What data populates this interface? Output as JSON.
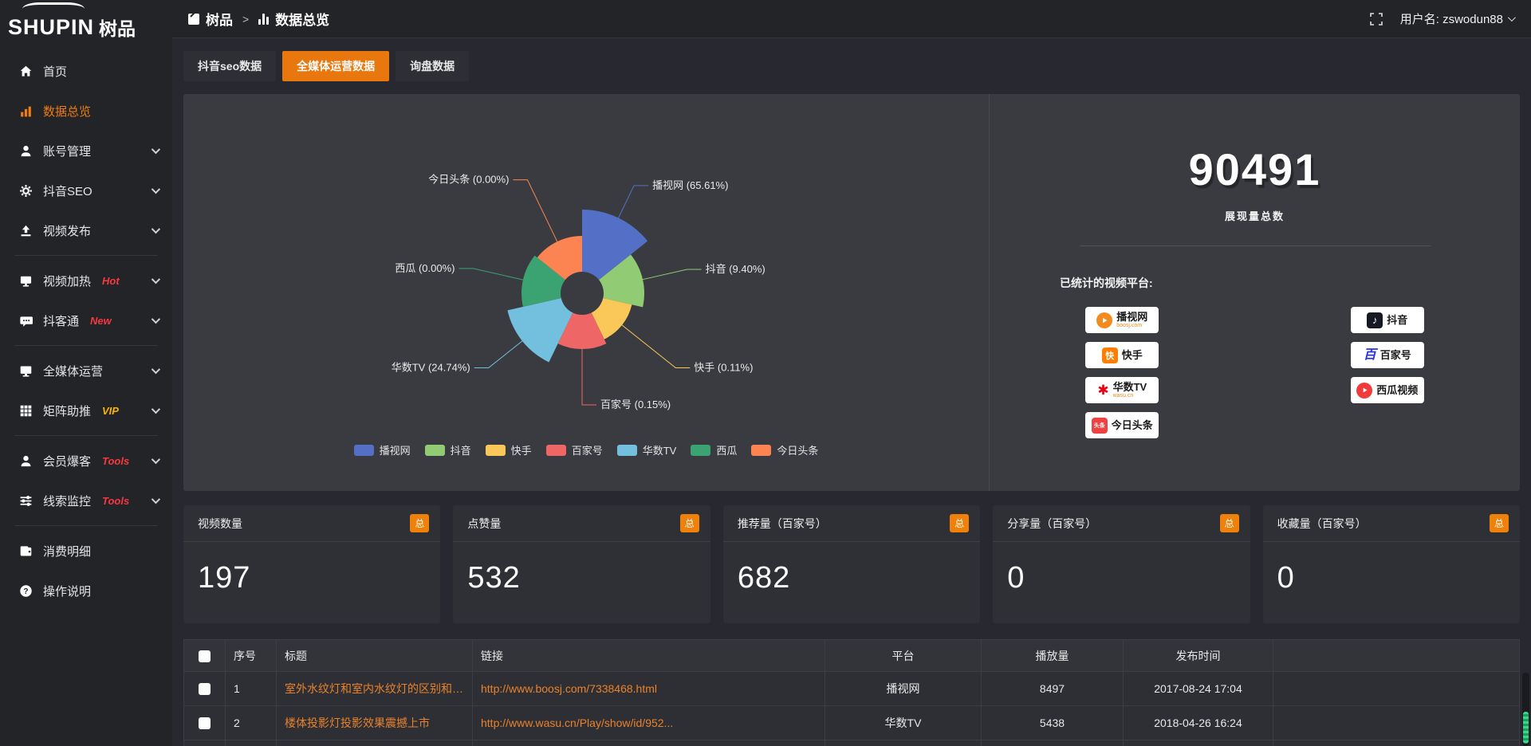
{
  "logo": {
    "main": "SHUPIN",
    "sub": "树品"
  },
  "topbar": {
    "breadcrumb": {
      "root": "树品",
      "separator": ">",
      "current": "数据总览"
    },
    "fullscreen_icon": "fullscreen-icon",
    "username": "用户名: zswodun88"
  },
  "sidebar": {
    "items": [
      {
        "label": "首页",
        "icon": "home"
      },
      {
        "label": "数据总览",
        "icon": "chart-bar",
        "active": true
      },
      {
        "label": "账号管理",
        "icon": "user",
        "chevron": true
      },
      {
        "label": "抖音SEO",
        "icon": "gear",
        "chevron": true
      },
      {
        "label": "视频发布",
        "icon": "upload",
        "chevron": true
      },
      {
        "divider": true
      },
      {
        "label": "视频加热",
        "icon": "screen",
        "badge": "Hot",
        "badge_color": "#f5393f",
        "chevron": true
      },
      {
        "label": "抖客通",
        "icon": "chat",
        "badge": "New",
        "badge_color": "#f5393f",
        "chevron": true
      },
      {
        "divider": true
      },
      {
        "label": "全媒体运营",
        "icon": "monitor",
        "chevron": true
      },
      {
        "label": "矩阵助推",
        "icon": "grid",
        "badge": "VIP",
        "badge_color": "#f7b500",
        "chevron": true
      },
      {
        "divider": true
      },
      {
        "label": "会员爆客",
        "icon": "user",
        "badge": "Tools",
        "badge_color": "#f5393f",
        "chevron": true
      },
      {
        "label": "线索监控",
        "icon": "sliders",
        "badge": "Tools",
        "badge_color": "#f5393f",
        "chevron": true
      },
      {
        "divider": true
      },
      {
        "label": "消费明细",
        "icon": "wallet"
      },
      {
        "label": "操作说明",
        "icon": "question"
      }
    ]
  },
  "tabs": [
    {
      "label": "抖音seo数据",
      "active": false
    },
    {
      "label": "全媒体运营数据",
      "active": true
    },
    {
      "label": "询盘数据",
      "active": false
    }
  ],
  "chart_data": {
    "type": "pie",
    "subtype": "nightingale-rose",
    "categories": [
      "播视网",
      "抖音",
      "快手",
      "百家号",
      "华数TV",
      "西瓜",
      "今日头条"
    ],
    "values_percent": [
      65.61,
      9.4,
      0.11,
      0.15,
      24.74,
      0.0,
      0.0
    ],
    "labels": [
      "播视网 (65.61%)",
      "抖音 (9.40%)",
      "快手 (0.11%)",
      "百家号 (0.15%)",
      "华数TV (24.74%)",
      "西瓜 (0.00%)",
      "今日头条 (0.00%)"
    ],
    "colors": [
      "#5470c6",
      "#91cc75",
      "#fac858",
      "#ee6666",
      "#73c0de",
      "#3ba272",
      "#fc8452"
    ],
    "legend": [
      "播视网",
      "抖音",
      "快手",
      "百家号",
      "华数TV",
      "西瓜",
      "今日头条"
    ],
    "legend_position": "bottom",
    "title": ""
  },
  "summary": {
    "total_value": "90491",
    "total_label": "展现量总数",
    "platforms_title": "已统计的视频平台:",
    "platforms_left": [
      {
        "name": "播视网",
        "sub": "boosj.com",
        "icon": "boosj"
      },
      {
        "name": "快手",
        "icon": "kuaishou"
      },
      {
        "name": "华数TV",
        "sub": "wasu.cn",
        "icon": "wasu"
      },
      {
        "name": "今日头条",
        "icon": "toutiao",
        "icon_text": "头条"
      }
    ],
    "platforms_right": [
      {
        "name": "抖音",
        "icon": "douyin"
      },
      {
        "name": "百家号",
        "icon": "baijiahao",
        "icon_text": "百"
      },
      {
        "name": "西瓜视频",
        "icon": "xigua"
      }
    ]
  },
  "stat_cards": [
    {
      "label": "视频数量",
      "badge": "总",
      "value": "197"
    },
    {
      "label": "点赞量",
      "badge": "总",
      "value": "532"
    },
    {
      "label": "推荐量（百家号）",
      "badge": "总",
      "value": "682"
    },
    {
      "label": "分享量（百家号）",
      "badge": "总",
      "value": "0"
    },
    {
      "label": "收藏量（百家号）",
      "badge": "总",
      "value": "0"
    }
  ],
  "table": {
    "headers": [
      "序号",
      "标题",
      "链接",
      "平台",
      "播放量",
      "发布时间"
    ],
    "rows": [
      {
        "index": "1",
        "title": "室外水纹灯和室内水纹灯的区别和简介",
        "link": "http://www.boosj.com/7338468.html",
        "platform": "播视网",
        "plays": "8497",
        "published": "2017-08-24 17:04"
      },
      {
        "index": "2",
        "title": "楼体投影灯投影效果震撼上市",
        "link": "http://www.wasu.cn/Play/show/id/952...",
        "platform": "华数TV",
        "plays": "5438",
        "published": "2018-04-26 16:24"
      },
      {
        "index": "",
        "title": "",
        "link": "",
        "platform": "",
        "plays": "",
        "published": ""
      }
    ]
  },
  "colors": {
    "accent_orange": "#e8770e",
    "link_orange": "#e8822c",
    "badge_red": "#f5393f",
    "badge_vip_yellow": "#f7b500",
    "panel_bg": "#3a3b40",
    "sidebar_bg": "#232428"
  }
}
